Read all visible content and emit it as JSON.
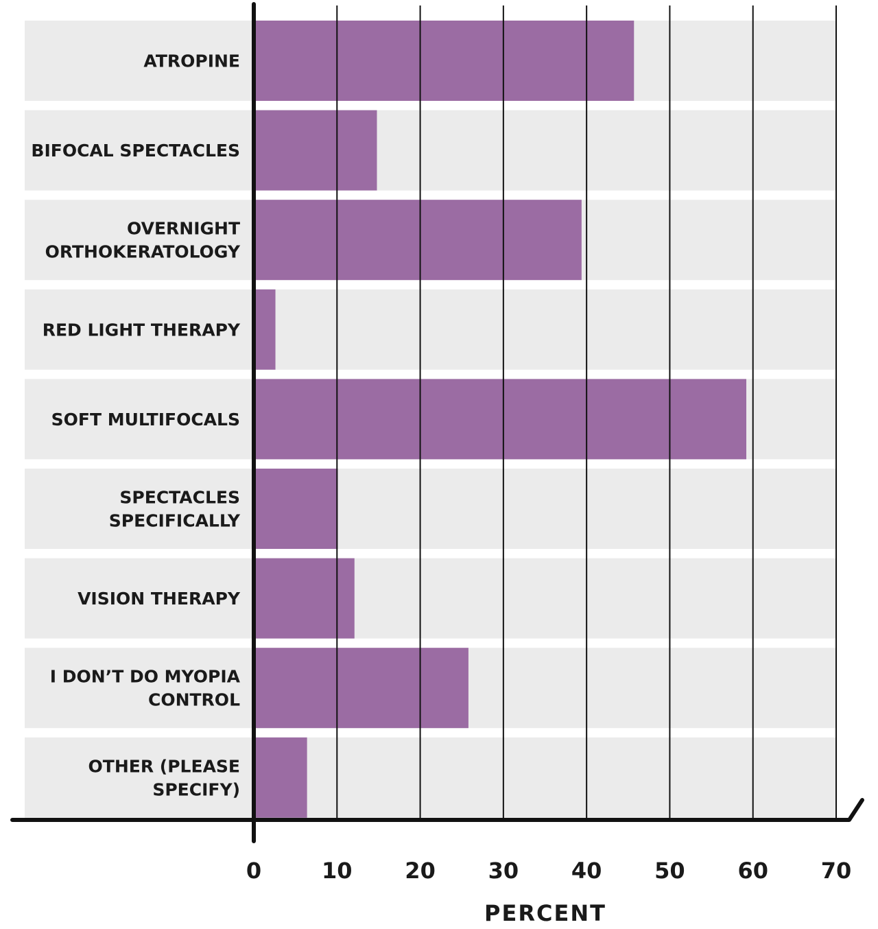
{
  "chart_data": {
    "type": "bar",
    "orientation": "horizontal",
    "categories": [
      [
        "ATROPINE"
      ],
      [
        "BIFOCAL SPECTACLES"
      ],
      [
        "OVERNIGHT",
        "ORTHOKERATOLOGY"
      ],
      [
        "RED LIGHT THERAPY"
      ],
      [
        "SOFT MULTIFOCALS"
      ],
      [
        "SPECTACLES",
        "SPECIFICALLY"
      ],
      [
        "VISION THERAPY"
      ],
      [
        "I DON’T DO MYOPIA",
        "CONTROL"
      ],
      [
        "OTHER (PLEASE",
        "SPECIFY)"
      ]
    ],
    "values": [
      45.7,
      14.8,
      39.4,
      2.6,
      59.2,
      10.1,
      12.1,
      25.8,
      6.4
    ],
    "xlabel": "PERCENT",
    "ylabel": "",
    "xlim": [
      0,
      70
    ],
    "ticks": [
      0,
      10,
      20,
      30,
      40,
      50,
      60,
      70
    ],
    "grid": true,
    "colors": {
      "bar": "#9b6ca3",
      "row_band": "#ebebeb",
      "axis": "#111111",
      "gridline": "#111111"
    }
  }
}
